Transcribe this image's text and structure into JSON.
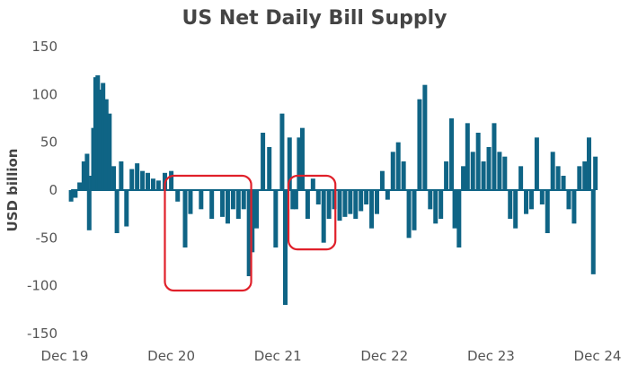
{
  "chart_data": {
    "type": "bar",
    "title": "US Net Daily Bill Supply",
    "xlabel": "",
    "ylabel": "USD billion",
    "ylim": [
      -150,
      150
    ],
    "y_ticks": [
      "150",
      "100",
      "50",
      "0",
      "-50",
      "-100",
      "-150"
    ],
    "y_tick_values": [
      150,
      100,
      50,
      0,
      -50,
      -100,
      -150
    ],
    "x_ticks": [
      "Dec 19",
      "Dec 20",
      "Dec 21",
      "Dec 22",
      "Dec 23",
      "Dec 24"
    ],
    "x_range": [
      2019.92,
      2024.92
    ],
    "x_tick_values": [
      2019.92,
      2020.92,
      2021.92,
      2022.92,
      2023.92,
      2024.92
    ],
    "grid": false,
    "legend": "none",
    "bar_color": "#0f6485",
    "highlight_color": "#e0202a",
    "series": [
      {
        "x": [
          2019.98,
          2020.02,
          2020.06,
          2020.1,
          2020.13,
          2020.15,
          2020.17,
          2020.19,
          2020.21,
          2020.23,
          2020.25,
          2020.28,
          2020.31,
          2020.34,
          2020.38,
          2020.41,
          2020.45,
          2020.5,
          2020.55,
          2020.6,
          2020.65,
          2020.7,
          2020.75,
          2020.8,
          2020.86,
          2020.92,
          2020.98,
          2021.05,
          2021.1,
          2021.2,
          2021.3,
          2021.4,
          2021.45,
          2021.5,
          2021.55,
          2021.6,
          2021.65,
          2021.68,
          2021.72,
          2021.78,
          2021.84,
          2021.9,
          2021.96,
          2021.99,
          2022.03,
          2022.06,
          2022.09,
          2022.12,
          2022.15,
          2022.2,
          2022.25,
          2022.3,
          2022.35,
          2022.4,
          2022.45,
          2022.5,
          2022.55,
          2022.6,
          2022.65,
          2022.7,
          2022.75,
          2022.8,
          2022.85,
          2022.9,
          2022.95,
          2023.0,
          2023.05,
          2023.1,
          2023.15,
          2023.2,
          2023.25,
          2023.3,
          2023.35,
          2023.4,
          2023.45,
          2023.5,
          2023.55,
          2023.58,
          2023.62,
          2023.66,
          2023.7,
          2023.75,
          2023.8,
          2023.85,
          2023.9,
          2023.95,
          2024.0,
          2024.05,
          2024.1,
          2024.15,
          2024.2,
          2024.25,
          2024.3,
          2024.35,
          2024.4,
          2024.45,
          2024.5,
          2024.55,
          2024.6,
          2024.65,
          2024.7,
          2024.75,
          2024.8,
          2024.84,
          2024.88,
          2024.9
        ],
        "values": [
          -12,
          -8,
          8,
          30,
          38,
          -42,
          15,
          65,
          118,
          120,
          105,
          112,
          95,
          80,
          25,
          -45,
          30,
          -38,
          22,
          28,
          20,
          18,
          12,
          10,
          18,
          20,
          -12,
          -60,
          -25,
          -20,
          -30,
          -28,
          -35,
          -20,
          -30,
          -20,
          -90,
          -65,
          -40,
          60,
          45,
          -60,
          80,
          -120,
          55,
          -20,
          -20,
          55,
          65,
          -30,
          12,
          -15,
          -55,
          -30,
          -20,
          -32,
          -28,
          -25,
          -30,
          -22,
          -15,
          -40,
          -25,
          20,
          -10,
          40,
          50,
          30,
          -50,
          -42,
          95,
          110,
          -20,
          -35,
          -30,
          30,
          75,
          -40,
          -60,
          25,
          70,
          40,
          60,
          30,
          45,
          70,
          40,
          35,
          -30,
          -40,
          25,
          -25,
          -20,
          55,
          -15,
          -45,
          40,
          25,
          15,
          -20,
          -35,
          25,
          30,
          55,
          -88,
          35
        ]
      }
    ],
    "highlights": [
      {
        "x": [
          2020.86,
          2021.67
        ],
        "y": [
          -105,
          15
        ]
      },
      {
        "x": [
          2022.02,
          2022.46
        ],
        "y": [
          -62,
          15
        ]
      }
    ]
  }
}
